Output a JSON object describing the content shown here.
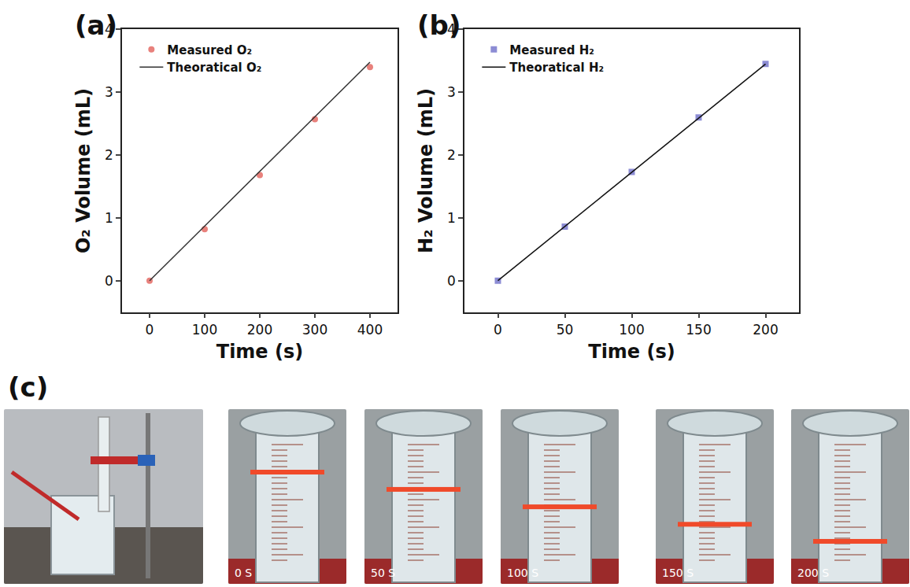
{
  "chart_data": [
    {
      "type": "scatter",
      "panel_label": "(a)",
      "x_label": "Time (s)",
      "y_label": "O₂ Volume (mL)",
      "xlim": [
        -50,
        450
      ],
      "xticks": [
        0,
        100,
        200,
        300,
        400
      ],
      "ylim": [
        -0.5,
        4
      ],
      "yticks": [
        0,
        1,
        2,
        3,
        4
      ],
      "legend": "upper left",
      "series": [
        {
          "name": "Measured O₂",
          "type": "scatter",
          "marker": "circle",
          "color": "#e8817c",
          "x": [
            0,
            100,
            200,
            300,
            400
          ],
          "values": [
            0,
            0.82,
            1.68,
            2.57,
            3.4
          ]
        },
        {
          "name": "Theoratical O₂",
          "type": "line",
          "color": "#333333",
          "x": [
            0,
            400
          ],
          "values": [
            0,
            3.48
          ]
        }
      ]
    },
    {
      "type": "scatter",
      "panel_label": "(b)",
      "x_label": "Time (s)",
      "y_label": "H₂ Volume (mL)",
      "xlim": [
        -25,
        225
      ],
      "xticks": [
        0,
        50,
        100,
        150,
        200
      ],
      "ylim": [
        -0.5,
        4
      ],
      "yticks": [
        0,
        1,
        2,
        3,
        4
      ],
      "legend": "upper left",
      "series": [
        {
          "name": "Measured H₂",
          "type": "scatter",
          "marker": "square",
          "color": "#8c8cd4",
          "x": [
            0,
            50,
            100,
            150,
            200
          ],
          "values": [
            0,
            0.86,
            1.73,
            2.6,
            3.45
          ]
        },
        {
          "name": "Theoratical H₂",
          "type": "line",
          "color": "#111111",
          "x": [
            0,
            200
          ],
          "values": [
            0,
            3.45
          ]
        }
      ]
    }
  ],
  "panel_c": {
    "label": "(c)",
    "captions": [
      "0 S",
      "50 S",
      "100 S",
      "150 S",
      "200 S"
    ]
  }
}
